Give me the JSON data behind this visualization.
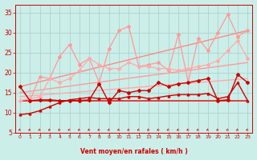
{
  "xlabel": "Vent moyen/en rafales ( km/h )",
  "bg_color": "#cceee8",
  "grid_color": "#aacccc",
  "x_ticks": [
    0,
    1,
    2,
    3,
    4,
    5,
    6,
    7,
    8,
    9,
    10,
    11,
    12,
    13,
    14,
    15,
    16,
    17,
    18,
    19,
    20,
    21,
    22,
    23
  ],
  "ylim": [
    5,
    37
  ],
  "xlim": [
    -0.5,
    23.5
  ],
  "yticks": [
    5,
    10,
    15,
    20,
    25,
    30,
    35
  ],
  "line_dark1": {
    "x": [
      0,
      1,
      2,
      3,
      4,
      5,
      6,
      7,
      8,
      9,
      10,
      11,
      12,
      13,
      14,
      15,
      16,
      17,
      18,
      19,
      20,
      21,
      22,
      23
    ],
    "y": [
      16.5,
      13.0,
      13.2,
      13.2,
      13.0,
      13.0,
      13.0,
      13.2,
      17.2,
      12.5,
      15.5,
      15.0,
      15.5,
      15.5,
      17.5,
      16.5,
      17.2,
      17.5,
      18.0,
      18.5,
      13.0,
      13.2,
      19.5,
      17.5
    ],
    "color": "#cc0000",
    "lw": 1.0,
    "marker": "D",
    "ms": 2.0
  },
  "line_dark2": {
    "x": [
      0,
      1,
      2,
      3,
      4,
      5,
      6,
      7,
      8,
      9,
      10,
      11,
      12,
      13,
      14,
      15,
      16,
      17,
      18,
      19,
      20,
      21,
      22,
      23
    ],
    "y": [
      9.5,
      9.8,
      10.5,
      11.5,
      12.5,
      13.2,
      13.5,
      13.8,
      13.5,
      13.5,
      13.5,
      14.0,
      14.0,
      13.5,
      13.8,
      14.2,
      14.5,
      14.5,
      14.5,
      14.8,
      13.5,
      14.0,
      17.5,
      13.0
    ],
    "color": "#cc0000",
    "lw": 1.0,
    "marker": "^",
    "ms": 2.0
  },
  "line_flat": {
    "x": [
      0,
      23
    ],
    "y": [
      13.0,
      13.0
    ],
    "color": "#dd2222",
    "lw": 1.2
  },
  "reg1": {
    "x": [
      0,
      23
    ],
    "y": [
      14.0,
      18.5
    ],
    "color": "#ffaaaa",
    "lw": 1.0
  },
  "reg2": {
    "x": [
      0,
      23
    ],
    "y": [
      15.0,
      22.5
    ],
    "color": "#ff9999",
    "lw": 1.0
  },
  "reg3": {
    "x": [
      0,
      23
    ],
    "y": [
      16.5,
      30.5
    ],
    "color": "#ff8888",
    "lw": 1.0
  },
  "pink1": {
    "x": [
      0,
      1,
      2,
      3,
      4,
      5,
      6,
      7,
      8,
      9,
      10,
      11,
      12,
      13,
      14,
      15,
      16,
      17,
      18,
      19,
      20,
      21,
      22,
      23
    ],
    "y": [
      16.5,
      13.0,
      19.0,
      18.5,
      24.0,
      27.0,
      22.0,
      23.5,
      17.5,
      26.0,
      30.5,
      31.5,
      21.5,
      22.0,
      22.5,
      20.5,
      29.5,
      17.5,
      28.5,
      25.5,
      30.0,
      34.5,
      29.0,
      30.5
    ],
    "color": "#ff9999",
    "lw": 0.9,
    "marker": "D",
    "ms": 2.0
  },
  "pink2": {
    "x": [
      0,
      1,
      2,
      3,
      4,
      5,
      6,
      7,
      8,
      9,
      10,
      11,
      12,
      13,
      14,
      15,
      16,
      17,
      18,
      19,
      20,
      21,
      22,
      23
    ],
    "y": [
      13.0,
      13.5,
      14.0,
      18.5,
      17.5,
      18.5,
      20.5,
      23.5,
      22.0,
      21.0,
      21.0,
      22.5,
      21.5,
      21.5,
      21.0,
      21.0,
      20.5,
      21.0,
      21.5,
      22.0,
      23.0,
      25.5,
      28.0,
      23.5
    ],
    "color": "#ffaaaa",
    "lw": 0.9,
    "marker": "D",
    "ms": 2.0
  },
  "arrow_color": "#cc0000",
  "spine_color": "#cc0000"
}
